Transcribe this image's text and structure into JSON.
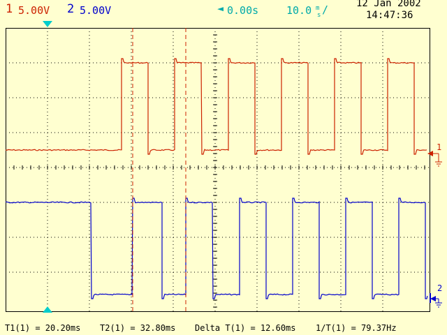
{
  "header": {
    "ch1": {
      "number": "1",
      "volts": "5.00V",
      "color": "#CC2200"
    },
    "ch2": {
      "number": "2",
      "volts": "5.00V",
      "color": "#0000CC"
    },
    "time_offset": "0.00s",
    "timebase": "10.0",
    "timebase_unit_top": "m",
    "timebase_unit_bottom": "s",
    "timebase_slash": "/",
    "date": "12 Jan 2002",
    "time": "14:47:36",
    "accent_color": "#00AAAA"
  },
  "markers": {
    "ch1_ground_label": "1",
    "ch2_ground_label": "2"
  },
  "measurements": {
    "t1": "T1(1) = 20.20ms",
    "t2": "T2(1) = 32.80ms",
    "delta": "Delta T(1) = 12.60ms",
    "freq": "1/T(1) = 79.37Hz"
  },
  "traces": {
    "period_ms": 12.6,
    "cursor_t1_ms": 20.2,
    "cursor_t2_ms": 32.8
  }
}
